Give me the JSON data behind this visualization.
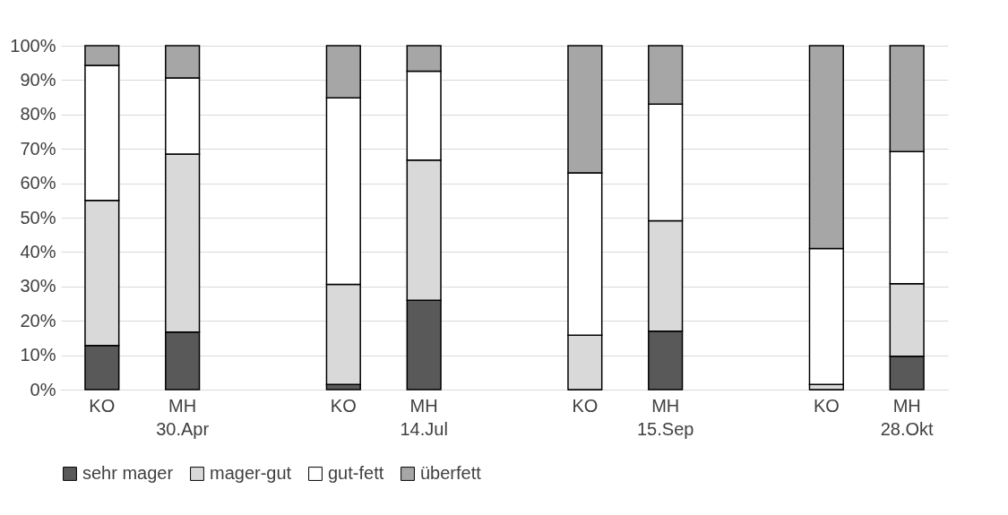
{
  "chart_data": {
    "type": "bar",
    "stacked": true,
    "categories": [
      "KO",
      "MH\n30.Apr",
      null,
      "KO",
      "MH\n14.Jul",
      null,
      "KO",
      "MH\n15.Sep",
      null,
      "KO",
      "MH\n28.Okt"
    ],
    "series": [
      {
        "name": "sehr mager",
        "color": "#595959",
        "values": [
          12.8,
          16.7,
          null,
          1.5,
          26,
          null,
          0,
          17,
          null,
          0,
          9.7
        ]
      },
      {
        "name": "mager-gut",
        "color": "#d9d9d9",
        "values": [
          42.2,
          51.8,
          null,
          29.1,
          40.7,
          null,
          15.8,
          32.1,
          null,
          1.5,
          21.1
        ]
      },
      {
        "name": "gut-fett",
        "color": "#ffffff",
        "values": [
          39.3,
          22.1,
          null,
          54.2,
          25.9,
          null,
          47.2,
          33.9,
          null,
          39.5,
          38.4
        ]
      },
      {
        "name": "überfett",
        "color": "#a6a6a6",
        "values": [
          5.7,
          9.4,
          null,
          15.2,
          7.4,
          null,
          37,
          17,
          null,
          59,
          30.8
        ]
      }
    ],
    "ylim": [
      0,
      100
    ],
    "yticks": [
      {
        "value": 0,
        "label": "0%"
      },
      {
        "value": 10,
        "label": "10%"
      },
      {
        "value": 20,
        "label": "20%"
      },
      {
        "value": 30,
        "label": "30%"
      },
      {
        "value": 40,
        "label": "40%"
      },
      {
        "value": 50,
        "label": "50%"
      },
      {
        "value": 60,
        "label": "60%"
      },
      {
        "value": 70,
        "label": "70%"
      },
      {
        "value": 80,
        "label": "80%"
      },
      {
        "value": 90,
        "label": "90%"
      },
      {
        "value": 100,
        "label": "100%"
      }
    ],
    "grid": "y",
    "legend": "bottom"
  }
}
